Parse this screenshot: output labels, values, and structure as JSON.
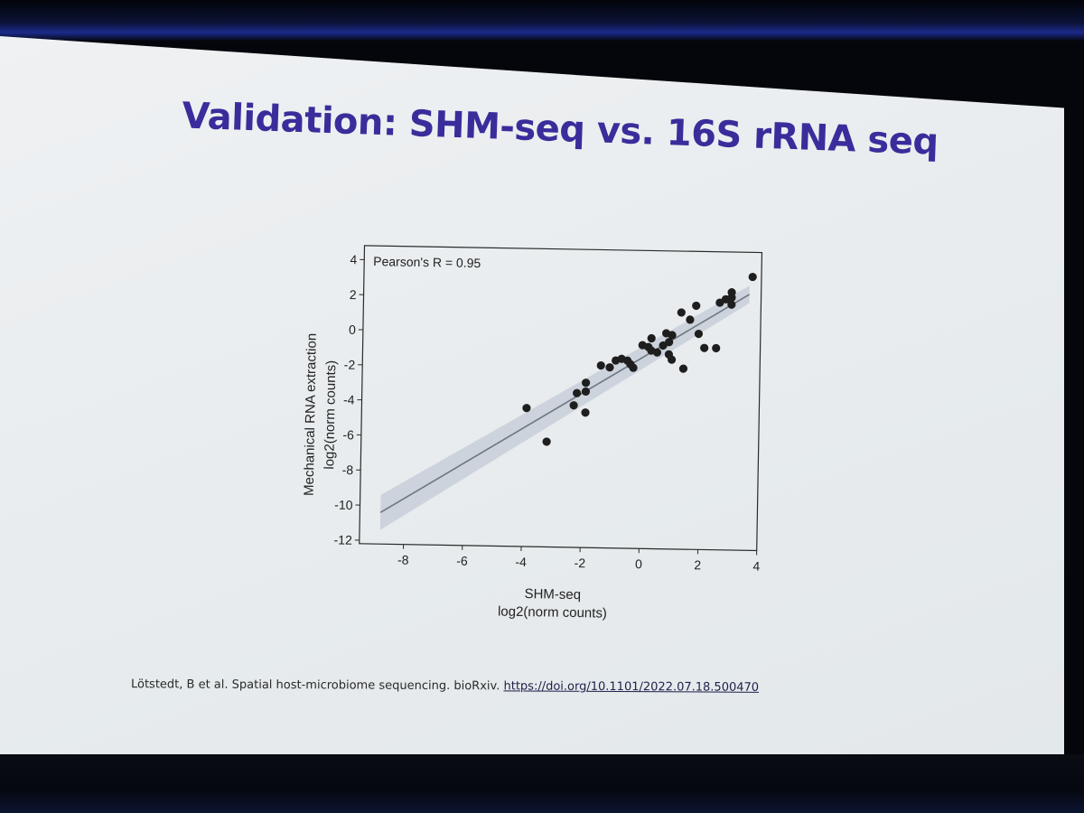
{
  "slide": {
    "title": "Validation: SHM-seq vs. 16S rRNA seq",
    "citation_text": "Lötstedt, B et al. Spatial host-microbiome sequencing. bioRxiv.",
    "citation_link": "https://doi.org/10.1101/2022.07.18.500470"
  },
  "chart_data": {
    "type": "scatter",
    "title": "",
    "annotation": "Pearson's R = 0.95",
    "xlabel_line1": "SHM-seq",
    "xlabel_line2": "log2(norm counts)",
    "ylabel_line1": "Mechanical RNA extraction",
    "ylabel_line2": "log2(norm counts)",
    "xlim": [
      -9.5,
      4.0
    ],
    "ylim": [
      -12.2,
      4.8
    ],
    "xticks": [
      -8,
      -6,
      -4,
      -2,
      0,
      2,
      4
    ],
    "yticks": [
      4,
      2,
      0,
      -2,
      -4,
      -6,
      -8,
      -10,
      -12
    ],
    "grid": false,
    "points": [
      {
        "x": -3.9,
        "y": -4.3
      },
      {
        "x": -3.2,
        "y": -6.2
      },
      {
        "x": -2.3,
        "y": -4.1
      },
      {
        "x": -2.2,
        "y": -3.4
      },
      {
        "x": -1.9,
        "y": -4.5
      },
      {
        "x": -1.9,
        "y": -3.3
      },
      {
        "x": -1.9,
        "y": -2.8
      },
      {
        "x": -1.4,
        "y": -1.8
      },
      {
        "x": -1.1,
        "y": -1.9
      },
      {
        "x": -0.9,
        "y": -1.5
      },
      {
        "x": -0.7,
        "y": -1.4
      },
      {
        "x": -0.5,
        "y": -1.5
      },
      {
        "x": -0.4,
        "y": -1.7
      },
      {
        "x": -0.3,
        "y": -1.9
      },
      {
        "x": 0.0,
        "y": -0.6
      },
      {
        "x": 0.2,
        "y": -0.7
      },
      {
        "x": 0.3,
        "y": -0.2
      },
      {
        "x": 0.3,
        "y": -0.9
      },
      {
        "x": 0.5,
        "y": -1.0
      },
      {
        "x": 0.7,
        "y": -0.6
      },
      {
        "x": 0.8,
        "y": 0.1
      },
      {
        "x": 0.9,
        "y": -0.4
      },
      {
        "x": 0.9,
        "y": -1.1
      },
      {
        "x": 1.0,
        "y": -1.4
      },
      {
        "x": 1.0,
        "y": 0.0
      },
      {
        "x": 1.3,
        "y": 1.3
      },
      {
        "x": 1.4,
        "y": -1.9
      },
      {
        "x": 1.6,
        "y": 0.9
      },
      {
        "x": 1.8,
        "y": 1.7
      },
      {
        "x": 1.9,
        "y": 0.1
      },
      {
        "x": 2.1,
        "y": -0.7
      },
      {
        "x": 2.5,
        "y": -0.7
      },
      {
        "x": 2.6,
        "y": 1.9
      },
      {
        "x": 2.8,
        "y": 2.1
      },
      {
        "x": 3.0,
        "y": 1.8
      },
      {
        "x": 3.0,
        "y": 2.2
      },
      {
        "x": 3.0,
        "y": 2.5
      },
      {
        "x": 3.7,
        "y": 3.4
      }
    ],
    "fit_line": {
      "x_start": -8.8,
      "y_start": -10.4,
      "x_end": 3.6,
      "y_end": 2.4
    },
    "ci_band": {
      "upper_start": -9.4,
      "lower_start": -11.4,
      "upper_end": 2.9,
      "lower_end": 1.9
    },
    "colors": {
      "point": "#1e1e1e",
      "line": "#6e7680",
      "band": "#9aa7bc",
      "frame": "#2a2a2a"
    }
  }
}
